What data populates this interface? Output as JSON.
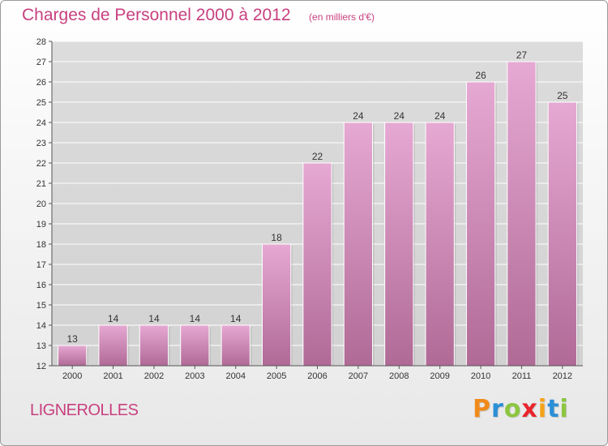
{
  "chart_data": {
    "type": "bar",
    "title": "Charges de Personnel 2000 à 2012",
    "subtitle": "(en milliers d'€)",
    "categories": [
      "2000",
      "2001",
      "2002",
      "2003",
      "2004",
      "2005",
      "2006",
      "2007",
      "2008",
      "2009",
      "2010",
      "2011",
      "2012"
    ],
    "values": [
      13,
      14,
      14,
      14,
      14,
      18,
      22,
      24,
      24,
      24,
      26,
      27,
      25
    ],
    "ylim": [
      12,
      28
    ],
    "yticks": [
      12,
      13,
      14,
      15,
      16,
      17,
      18,
      19,
      20,
      21,
      22,
      23,
      24,
      25,
      26,
      27,
      28
    ],
    "grid": true,
    "xlabel": "",
    "ylabel": ""
  },
  "commune": "LIGNEROLLES",
  "brand": {
    "letters": [
      "P",
      "r",
      "o",
      "x",
      "i",
      "t",
      "i"
    ],
    "colors": [
      "#f08a1a",
      "#2a8fd6",
      "#8cc63f",
      "#e8262c",
      "#f5a31a",
      "#2a8fd6",
      "#8cc63f"
    ]
  },
  "colors": {
    "bar_top": "#e6a9d3",
    "bar_bottom": "#b06a96",
    "accent": "#c8407f",
    "grid": "#ffffff",
    "axis": "#555555"
  }
}
